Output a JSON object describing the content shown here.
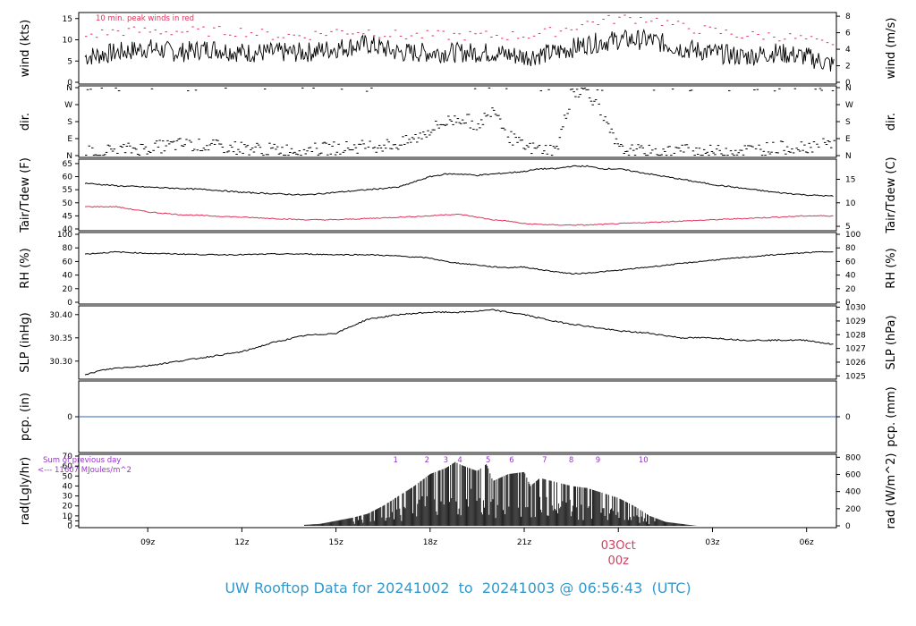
{
  "footer": {
    "prefix": "UW Rooftop Data for",
    "start": "20241002",
    "to": "to",
    "end": "20241003 @ 06:56:43",
    "tz": "(UTC)"
  },
  "colors": {
    "line": "#000000",
    "peak": "#e0335a",
    "dew": "#e0335a",
    "precip": "#3366bb",
    "rad_annot": "#9933cc",
    "date_label": "#d04060",
    "footer": "#3399cc"
  },
  "chart_data": [
    {
      "type": "line",
      "panel": "wind",
      "ylabel": "wind (kts)",
      "ylabel_right": "wind (m/s)",
      "ylim": [
        0,
        16
      ],
      "yticks": [
        0,
        5,
        10,
        15
      ],
      "yticks_right": [
        0,
        2,
        4,
        6,
        8
      ],
      "annotation": "10 min. peak winds in red",
      "series": [
        {
          "x": [
            7.0,
            8.0,
            9.0,
            10.0,
            11.0,
            12.0,
            13.0,
            14.0,
            15.0,
            16.0,
            17.0,
            18.0,
            19.0,
            20.0,
            21.0,
            22.0,
            23.0,
            24.0,
            25.0,
            26.0,
            27.0,
            28.0,
            29.0,
            30.0,
            30.9
          ],
          "values": [
            6,
            7,
            8,
            7,
            8,
            7,
            7,
            7,
            8,
            9,
            7,
            7,
            7,
            7,
            6,
            7,
            9,
            10,
            10,
            8,
            7,
            6,
            7,
            6,
            4
          ]
        },
        {
          "x": [
            7.0,
            8.0,
            9.0,
            10.0,
            11.0,
            12.0,
            13.0,
            14.0,
            15.0,
            16.0,
            17.0,
            18.0,
            19.0,
            20.0,
            21.0,
            22.0,
            23.0,
            24.0,
            25.0,
            26.0,
            27.0,
            28.0,
            29.0,
            30.0,
            30.9
          ],
          "values": [
            11,
            12,
            12,
            12,
            12,
            12,
            11,
            11,
            12,
            12,
            11,
            11,
            11,
            11,
            11,
            12,
            14,
            15,
            15,
            13,
            12,
            11,
            11,
            10,
            8
          ]
        }
      ]
    },
    {
      "type": "scatter",
      "panel": "dir",
      "ylabel": "dir.",
      "ylabel_right": "dir.",
      "yticks": [
        "N",
        "E",
        "S",
        "W",
        "N"
      ],
      "ylim": [
        0,
        360
      ],
      "x": [
        7.0,
        8.0,
        9.0,
        10.0,
        11.0,
        12.0,
        13.0,
        14.0,
        15.0,
        16.0,
        17.0,
        17.5,
        18.0,
        18.5,
        19.0,
        19.5,
        20.0,
        20.5,
        21.0,
        22.0,
        22.5,
        23.0,
        24.0,
        25.0,
        26.0,
        27.0,
        28.0,
        29.0,
        30.0,
        30.9
      ],
      "values": [
        20,
        30,
        40,
        60,
        50,
        40,
        30,
        30,
        40,
        50,
        60,
        90,
        140,
        180,
        200,
        160,
        260,
        100,
        40,
        30,
        340,
        350,
        30,
        20,
        30,
        20,
        30,
        40,
        50,
        60
      ]
    },
    {
      "type": "line",
      "panel": "temp",
      "ylabel": "Tair/Tdew (F)",
      "ylabel_right": "Tair/Tdew (C)",
      "ylim": [
        40,
        66
      ],
      "yticks": [
        40,
        45,
        50,
        55,
        60,
        65
      ],
      "yticks_right": [
        5,
        10,
        15
      ],
      "series": [
        {
          "x": [
            7.0,
            8.0,
            9.0,
            10.0,
            11.0,
            12.0,
            13.0,
            14.0,
            15.0,
            16.0,
            17.0,
            17.5,
            18.0,
            18.5,
            19.0,
            19.5,
            20.0,
            20.5,
            21.0,
            21.5,
            22.0,
            22.5,
            23.0,
            23.5,
            24.0,
            24.5,
            25.0,
            26.0,
            27.0,
            28.0,
            29.0,
            30.0,
            30.9
          ],
          "values": [
            57.5,
            56.5,
            56.0,
            55.5,
            55.0,
            54.0,
            53.5,
            53.0,
            54.0,
            55.0,
            56.0,
            58.0,
            60.0,
            61.0,
            61.0,
            60.5,
            61.0,
            61.5,
            62.0,
            63.0,
            63.0,
            64.0,
            64.0,
            63.0,
            63.0,
            62.0,
            61.0,
            59.0,
            57.0,
            55.5,
            54.0,
            53.0,
            52.5
          ]
        },
        {
          "x": [
            7.0,
            8.0,
            9.0,
            10.0,
            11.0,
            12.0,
            13.0,
            14.0,
            15.0,
            16.0,
            17.0,
            18.0,
            18.5,
            19.0,
            19.5,
            20.0,
            20.5,
            21.0,
            22.0,
            23.0,
            24.0,
            25.0,
            26.0,
            27.0,
            28.0,
            29.0,
            30.0,
            30.9
          ],
          "values": [
            48.5,
            48.5,
            46.5,
            45.5,
            45.0,
            44.5,
            44.0,
            43.5,
            43.5,
            44.0,
            44.5,
            45.0,
            45.5,
            45.5,
            44.5,
            43.5,
            43.0,
            42.0,
            41.5,
            41.5,
            42.0,
            42.5,
            43.0,
            43.5,
            44.0,
            44.5,
            45.0,
            45.0
          ]
        }
      ]
    },
    {
      "type": "line",
      "panel": "rh",
      "ylabel": "RH (%)",
      "ylabel_right": "RH (%)",
      "ylim": [
        0,
        100
      ],
      "yticks": [
        0,
        20,
        40,
        60,
        80,
        100
      ],
      "yticks_right": [
        0,
        20,
        40,
        60,
        80,
        100
      ],
      "series": [
        {
          "x": [
            7.0,
            8.0,
            9.0,
            10.0,
            11.0,
            12.0,
            13.0,
            14.0,
            15.0,
            16.0,
            17.0,
            18.0,
            18.5,
            19.0,
            19.5,
            20.0,
            20.5,
            21.0,
            21.5,
            22.0,
            22.5,
            23.0,
            24.0,
            25.0,
            26.0,
            27.0,
            28.0,
            29.0,
            30.0,
            30.9
          ],
          "values": [
            71,
            74,
            72,
            71,
            70,
            70,
            71,
            71,
            70,
            70,
            68,
            65,
            60,
            57,
            55,
            52,
            51,
            52,
            48,
            45,
            42,
            43,
            47,
            52,
            57,
            62,
            66,
            70,
            73,
            75
          ]
        }
      ]
    },
    {
      "type": "line",
      "panel": "slp",
      "ylabel": "SLP (inHg)",
      "ylabel_right": "SLP (hPa)",
      "ylim": [
        30.265,
        30.415
      ],
      "yticks": [
        30.3,
        30.35,
        30.4
      ],
      "yticks_right": [
        1025,
        1026,
        1027,
        1028,
        1029,
        1030
      ],
      "series": [
        {
          "x": [
            7.0,
            7.5,
            8.0,
            9.0,
            10.0,
            11.0,
            12.0,
            13.0,
            14.0,
            15.0,
            16.0,
            17.0,
            18.0,
            19.0,
            20.0,
            21.0,
            22.0,
            23.0,
            24.0,
            25.0,
            26.0,
            27.0,
            28.0,
            29.0,
            30.0,
            30.9
          ],
          "values": [
            30.27,
            30.28,
            30.285,
            30.29,
            30.3,
            30.31,
            30.32,
            30.34,
            30.355,
            30.36,
            30.39,
            30.4,
            30.405,
            30.405,
            30.41,
            30.4,
            30.385,
            30.375,
            30.365,
            30.36,
            30.35,
            30.35,
            30.345,
            30.345,
            30.345,
            30.335
          ]
        }
      ]
    },
    {
      "type": "line",
      "panel": "pcp",
      "ylabel": "pcp. (in)",
      "ylabel_right": "pcp. (mm)",
      "yticks": [
        0
      ],
      "yticks_right": [
        0
      ],
      "series": [
        {
          "x": [
            7.0,
            30.9
          ],
          "values": [
            0,
            0
          ]
        }
      ]
    },
    {
      "type": "bar",
      "panel": "rad",
      "ylabel": "rad(Lgly/hr)",
      "ylabel_right": "rad (W/m^2)",
      "ylim": [
        0,
        70
      ],
      "yticks": [
        0,
        5,
        10,
        20,
        30,
        40,
        50,
        60,
        70
      ],
      "yticks_right": [
        0,
        200,
        400,
        600,
        800
      ],
      "annotation_lines": [
        "Sum of previous day",
        "11607 MJoules/m^2"
      ],
      "hour_labels": [
        "1",
        "2",
        "3",
        "4",
        "5",
        "6",
        "7",
        "8",
        "9",
        "10"
      ],
      "hour_label_x": [
        16.9,
        17.9,
        18.5,
        18.95,
        19.85,
        20.6,
        21.65,
        22.5,
        23.35,
        24.8
      ],
      "x": [
        14.0,
        14.5,
        15.0,
        15.5,
        16.0,
        16.5,
        17.0,
        17.5,
        18.0,
        18.5,
        18.8,
        19.0,
        19.5,
        19.8,
        20.0,
        20.5,
        21.0,
        21.2,
        21.5,
        22.0,
        22.5,
        23.0,
        23.5,
        24.0,
        24.5,
        25.0,
        25.5,
        26.0,
        26.5
      ],
      "values": [
        1,
        2,
        5,
        8,
        12,
        20,
        30,
        40,
        52,
        58,
        64,
        61,
        55,
        62,
        45,
        52,
        54,
        40,
        48,
        44,
        40,
        38,
        33,
        28,
        20,
        10,
        4,
        2,
        0
      ]
    }
  ],
  "x_axis": {
    "ticks": [
      "09z",
      "12z",
      "15z",
      "18z",
      "21z",
      "03z",
      "06z"
    ],
    "tick_x": [
      9,
      12,
      15,
      18,
      21,
      27,
      30
    ],
    "date_label": "03Oct",
    "date_sub": "00z",
    "date_x": 24
  }
}
